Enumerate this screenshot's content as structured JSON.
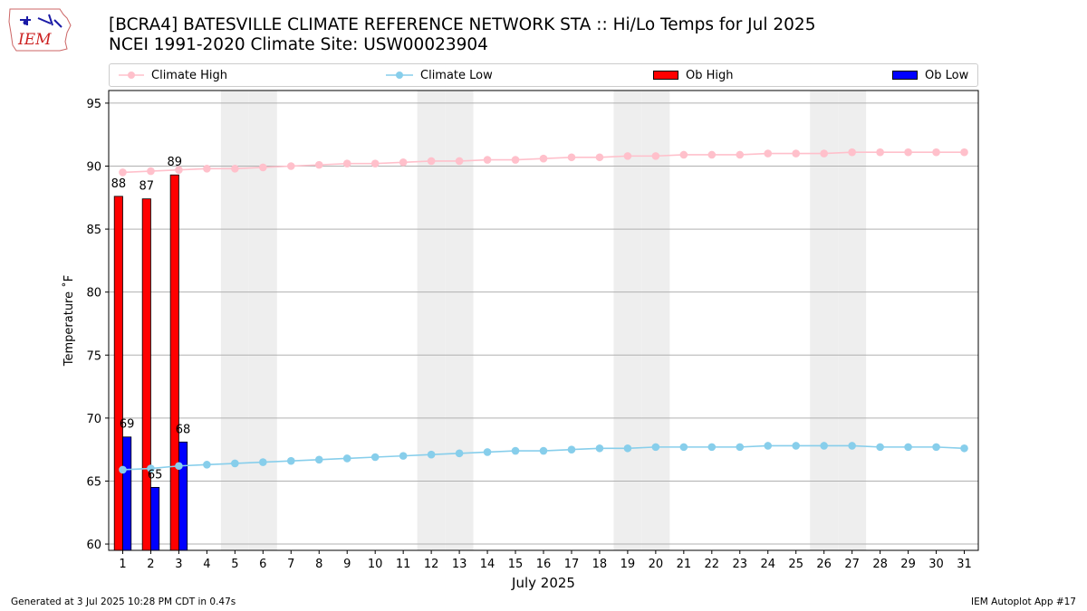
{
  "header": {
    "title_line1": "[BCRA4] BATESVILLE CLIMATE REFERENCE NETWORK STA :: Hi/Lo Temps for Jul 2025",
    "title_line2": "NCEI 1991-2020 Climate Site: USW00023904",
    "logo_text": "IEM"
  },
  "footer": {
    "generated": "Generated at 3 Jul 2025 10:28 PM CDT in 0.47s",
    "app": "IEM Autoplot App #17"
  },
  "colors": {
    "climate_high": "#ffc0cb",
    "climate_low": "#87ceeb",
    "ob_high": "#ff0000",
    "ob_low": "#0000ff",
    "weekend_band": "#eeeeee",
    "grid": "#b0b0b0"
  },
  "chart_data": {
    "type": "bar",
    "xlabel": "July 2025",
    "ylabel": "Temperature ˚F",
    "xlim": [
      0.5,
      31.5
    ],
    "ylim": [
      59.5,
      96
    ],
    "yticks": [
      60,
      65,
      70,
      75,
      80,
      85,
      90,
      95
    ],
    "grid": "horizontal",
    "legend": "top",
    "days": [
      1,
      2,
      3,
      4,
      5,
      6,
      7,
      8,
      9,
      10,
      11,
      12,
      13,
      14,
      15,
      16,
      17,
      18,
      19,
      20,
      21,
      22,
      23,
      24,
      25,
      26,
      27,
      28,
      29,
      30,
      31
    ],
    "weekend_days": [
      5,
      6,
      12,
      13,
      19,
      20,
      26,
      27
    ],
    "series": [
      {
        "name": "Climate High",
        "kind": "line",
        "values": [
          89.5,
          89.6,
          89.7,
          89.8,
          89.8,
          89.9,
          90.0,
          90.1,
          90.2,
          90.2,
          90.3,
          90.4,
          90.4,
          90.5,
          90.5,
          90.6,
          90.7,
          90.7,
          90.8,
          90.8,
          90.9,
          90.9,
          90.9,
          91.0,
          91.0,
          91.0,
          91.1,
          91.1,
          91.1,
          91.1,
          91.1
        ]
      },
      {
        "name": "Climate Low",
        "kind": "line",
        "values": [
          65.9,
          66.0,
          66.2,
          66.3,
          66.4,
          66.5,
          66.6,
          66.7,
          66.8,
          66.9,
          67.0,
          67.1,
          67.2,
          67.3,
          67.4,
          67.4,
          67.5,
          67.6,
          67.6,
          67.7,
          67.7,
          67.7,
          67.7,
          67.8,
          67.8,
          67.8,
          67.8,
          67.7,
          67.7,
          67.7,
          67.6
        ]
      },
      {
        "name": "Ob High",
        "kind": "bar",
        "days": [
          1,
          2,
          3
        ],
        "values": [
          87.6,
          87.4,
          89.3
        ],
        "labels": [
          "88",
          "87",
          "89"
        ]
      },
      {
        "name": "Ob Low",
        "kind": "bar",
        "days": [
          1,
          2,
          3
        ],
        "values": [
          68.5,
          64.5,
          68.1
        ],
        "labels": [
          "69",
          "65",
          "68"
        ]
      }
    ]
  }
}
